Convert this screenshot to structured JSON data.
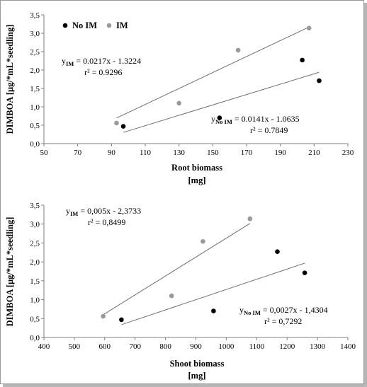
{
  "chart_data": [
    {
      "type": "scatter",
      "title": "",
      "xlabel_line1": "Root biomass",
      "xlabel_line2": "[mg]",
      "ylabel": "DIMBOA [µg/*mL*seedling]",
      "xlim": [
        50,
        230
      ],
      "ylim": [
        0,
        3.5
      ],
      "x_ticks": [
        "50",
        "70",
        "90",
        "110",
        "130",
        "150",
        "170",
        "190",
        "210",
        "230"
      ],
      "y_ticks": [
        "0,0",
        "0,5",
        "1,0",
        "1,5",
        "2,0",
        "2,5",
        "3,0",
        "3,5"
      ],
      "legend_placement": "top-left",
      "series": [
        {
          "name": "No IM",
          "color": "#000000",
          "points": [
            [
              97,
              0.47
            ],
            [
              154,
              0.7
            ],
            [
              203,
              2.27
            ],
            [
              213,
              1.71
            ]
          ],
          "trend": {
            "slope": 0.0141,
            "intercept": -1.0635
          },
          "equation": "y = 0.0141x - 1.0635",
          "eq_y": "y",
          "eq_sub": "No IM",
          "eq_rest": "= 0.0141x - 1.0635",
          "r2": "r² = 0.7849"
        },
        {
          "name": "IM",
          "color": "#999999",
          "points": [
            [
              93,
              0.56
            ],
            [
              130,
              1.1
            ],
            [
              165,
              2.54
            ],
            [
              207,
              3.14
            ]
          ],
          "trend": {
            "slope": 0.0217,
            "intercept": -1.3224
          },
          "eq_y": "y",
          "eq_sub": "IM",
          "eq_rest": "= 0.0217x - 1.3224",
          "r2": "r² = 0.9296"
        }
      ]
    },
    {
      "type": "scatter",
      "title": "",
      "xlabel_line1": "Shoot biomass",
      "xlabel_line2": "[mg]",
      "ylabel": "DIMBOA [µg/*mL*seedling]",
      "xlim": [
        400,
        1400
      ],
      "ylim": [
        0,
        3.5
      ],
      "x_ticks": [
        "400",
        "500",
        "600",
        "700",
        "800",
        "900",
        "1000",
        "1100",
        "1200",
        "1300",
        "1400"
      ],
      "y_ticks": [
        "0,0",
        "0,5",
        "1,0",
        "1,5",
        "2,0",
        "2,5",
        "3,0",
        "3,5"
      ],
      "series": [
        {
          "name": "No IM",
          "color": "#000000",
          "points": [
            [
              655,
              0.47
            ],
            [
              958,
              0.7
            ],
            [
              1168,
              2.27
            ],
            [
              1258,
              1.71
            ]
          ],
          "trend": {
            "slope": 0.0027,
            "intercept": -1.4304
          },
          "eq_y": "y",
          "eq_sub": "No IM",
          "eq_rest": "= 0,0027x - 1,4304",
          "r2": "r² = 0,7292"
        },
        {
          "name": "IM",
          "color": "#999999",
          "points": [
            [
              595,
              0.56
            ],
            [
              820,
              1.1
            ],
            [
              923,
              2.54
            ],
            [
              1078,
              3.14
            ]
          ],
          "trend": {
            "slope": 0.005,
            "intercept": -2.3733
          },
          "eq_y": "y",
          "eq_sub": "IM",
          "eq_rest": "= 0,005x - 2,3733",
          "r2": "r² = 0,8499"
        }
      ]
    }
  ]
}
